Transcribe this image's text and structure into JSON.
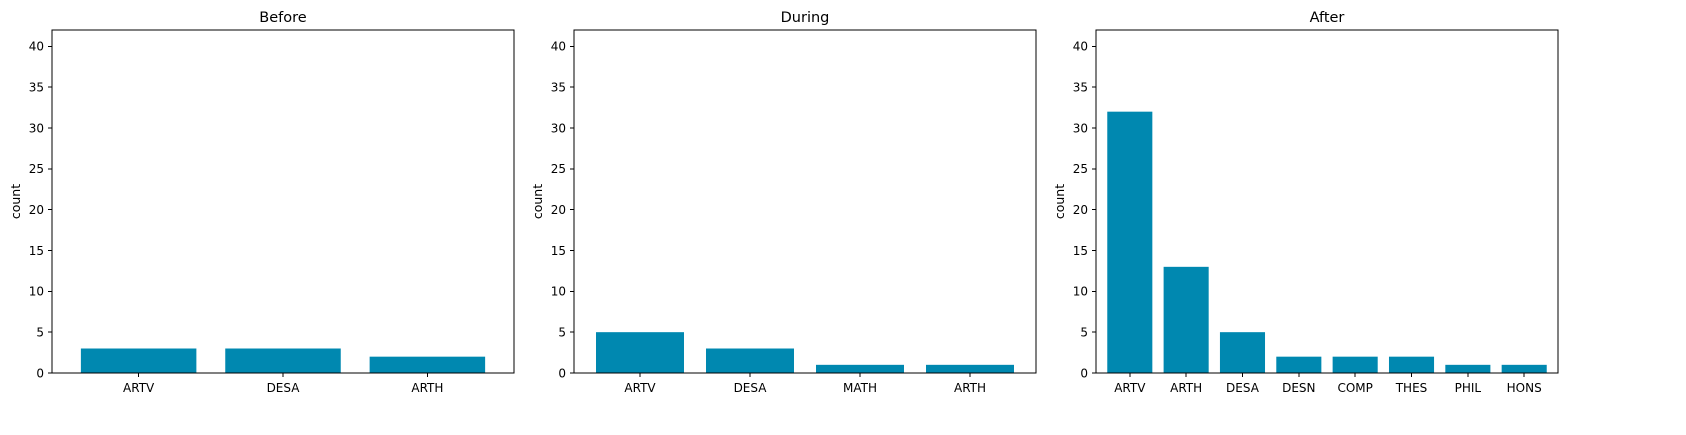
{
  "chart_data": [
    {
      "type": "bar",
      "title": "Before",
      "xlabel": "",
      "ylabel": "count",
      "categories": [
        "ARTV",
        "DESA",
        "ARTH"
      ],
      "values": [
        3,
        3,
        2
      ],
      "ylim": [
        0,
        42
      ],
      "yticks": [
        0,
        5,
        10,
        15,
        20,
        25,
        30,
        35,
        40
      ],
      "bar_color": "#0088b0",
      "grid": false,
      "legend": "none"
    },
    {
      "type": "bar",
      "title": "During",
      "xlabel": "",
      "ylabel": "count",
      "categories": [
        "ARTV",
        "DESA",
        "MATH",
        "ARTH"
      ],
      "values": [
        5,
        3,
        1,
        1
      ],
      "ylim": [
        0,
        42
      ],
      "yticks": [
        0,
        5,
        10,
        15,
        20,
        25,
        30,
        35,
        40
      ],
      "bar_color": "#0088b0",
      "grid": false,
      "legend": "none"
    },
    {
      "type": "bar",
      "title": "After",
      "xlabel": "",
      "ylabel": "count",
      "categories": [
        "ARTV",
        "ARTH",
        "DESA",
        "DESN",
        "COMP",
        "THES",
        "PHIL",
        "HONS"
      ],
      "values": [
        32,
        13,
        5,
        2,
        2,
        2,
        1,
        1
      ],
      "ylim": [
        0,
        42
      ],
      "yticks": [
        0,
        5,
        10,
        15,
        20,
        25,
        30,
        35,
        40
      ],
      "bar_color": "#0088b0",
      "grid": false,
      "legend": "none"
    }
  ]
}
